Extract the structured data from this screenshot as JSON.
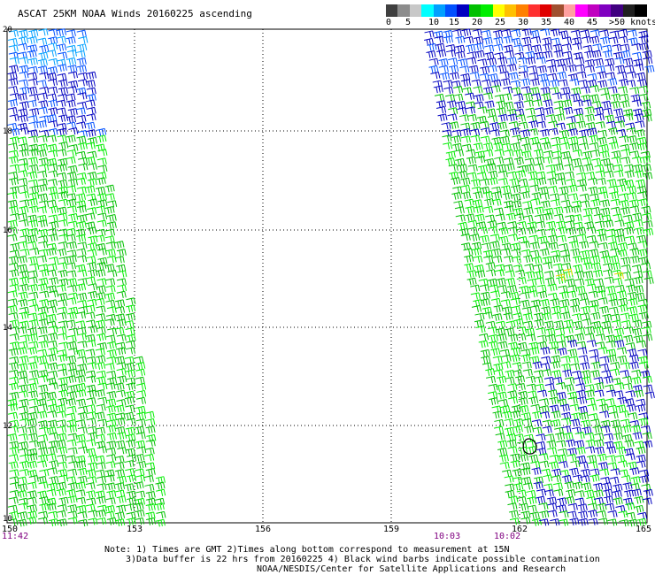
{
  "title": "ASCAT 25KM NOAA Winds 20160225 ascending",
  "legend": {
    "colors": [
      "#3f3f3f",
      "#8c8c8c",
      "#c8c8c8",
      "#00ffff",
      "#00a0ff",
      "#0050ff",
      "#0000c0",
      "#00c000",
      "#00ee00",
      "#ffff00",
      "#ffc000",
      "#ff8000",
      "#ff3030",
      "#e00000",
      "#a05030",
      "#ffa0a0",
      "#ff00ff",
      "#c000c0",
      "#8000c0",
      "#400080",
      "#202020",
      "#000000"
    ],
    "labels": [
      "0",
      "5",
      "10",
      "15",
      "20",
      "25",
      "30",
      "35",
      "40",
      "45",
      ">50 knots"
    ]
  },
  "map": {
    "lat_labels": [
      "20",
      "18",
      "16",
      "14",
      "12",
      "10"
    ],
    "lon_labels": [
      "150",
      "153",
      "156",
      "159",
      "162",
      "165"
    ],
    "times": [
      "11:42",
      "10:03",
      "10:02"
    ]
  },
  "notes": {
    "line1": "Note: 1) Times are GMT 2)Times along bottom correspond to measurement at 15N",
    "line2": "3)Data buffer is 22 hrs from 20160225 4) Black wind barbs indicate possible contamination",
    "line3": "NOAA/NESDIS/Center for Satellite Applications and Research"
  }
}
